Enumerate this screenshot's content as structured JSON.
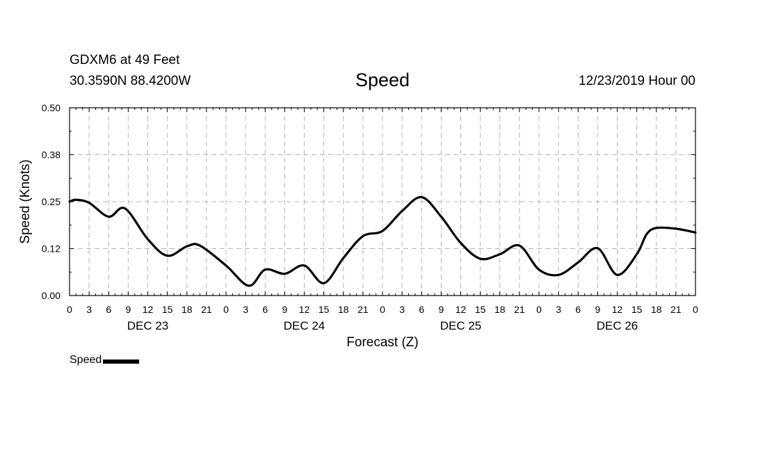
{
  "header": {
    "station": "GDXM6 at 49 Feet",
    "coords": "30.3590N 88.4200W",
    "title": "Speed",
    "run_time": "12/23/2019 Hour 00"
  },
  "legend": {
    "label": "Speed"
  },
  "chart_data": {
    "type": "line",
    "title": "Speed",
    "xlabel": "Forecast (Z)",
    "ylabel": "Speed (Knots)",
    "x_unit": "forecast hour from 12/23/2019 00Z",
    "xlim": [
      0,
      96
    ],
    "ylim": [
      0,
      0.5
    ],
    "y_ticks": [
      "0.00",
      "0.12",
      "0.25",
      "0.38",
      "0.50"
    ],
    "x_tick_labels": [
      "0",
      "3",
      "6",
      "9",
      "12",
      "15",
      "18",
      "21",
      "0",
      "3",
      "6",
      "9",
      "12",
      "15",
      "18",
      "21",
      "0",
      "3",
      "6",
      "9",
      "12",
      "15",
      "18",
      "21",
      "0",
      "3",
      "6",
      "9",
      "12",
      "15",
      "18",
      "21",
      "0"
    ],
    "day_labels": [
      "DEC 23",
      "DEC 24",
      "DEC 25",
      "DEC 26"
    ],
    "grid": true,
    "legend_position": "bottom-left",
    "series": [
      {
        "name": "Speed",
        "color": "#000000",
        "x": [
          0,
          1,
          3,
          6,
          8.5,
          12,
          15,
          18,
          20,
          24,
          27.5,
          30,
          33,
          36,
          39,
          42,
          45,
          48,
          51,
          54,
          57,
          60,
          63,
          66,
          69,
          72,
          75,
          78,
          81,
          84,
          87,
          88.5,
          90,
          93,
          96
        ],
        "y": [
          0.25,
          0.255,
          0.247,
          0.21,
          0.232,
          0.15,
          0.106,
          0.131,
          0.133,
          0.08,
          0.026,
          0.069,
          0.058,
          0.08,
          0.033,
          0.1,
          0.158,
          0.172,
          0.225,
          0.262,
          0.21,
          0.14,
          0.098,
          0.11,
          0.133,
          0.069,
          0.055,
          0.088,
          0.126,
          0.055,
          0.11,
          0.163,
          0.18,
          0.178,
          0.168
        ]
      }
    ]
  }
}
